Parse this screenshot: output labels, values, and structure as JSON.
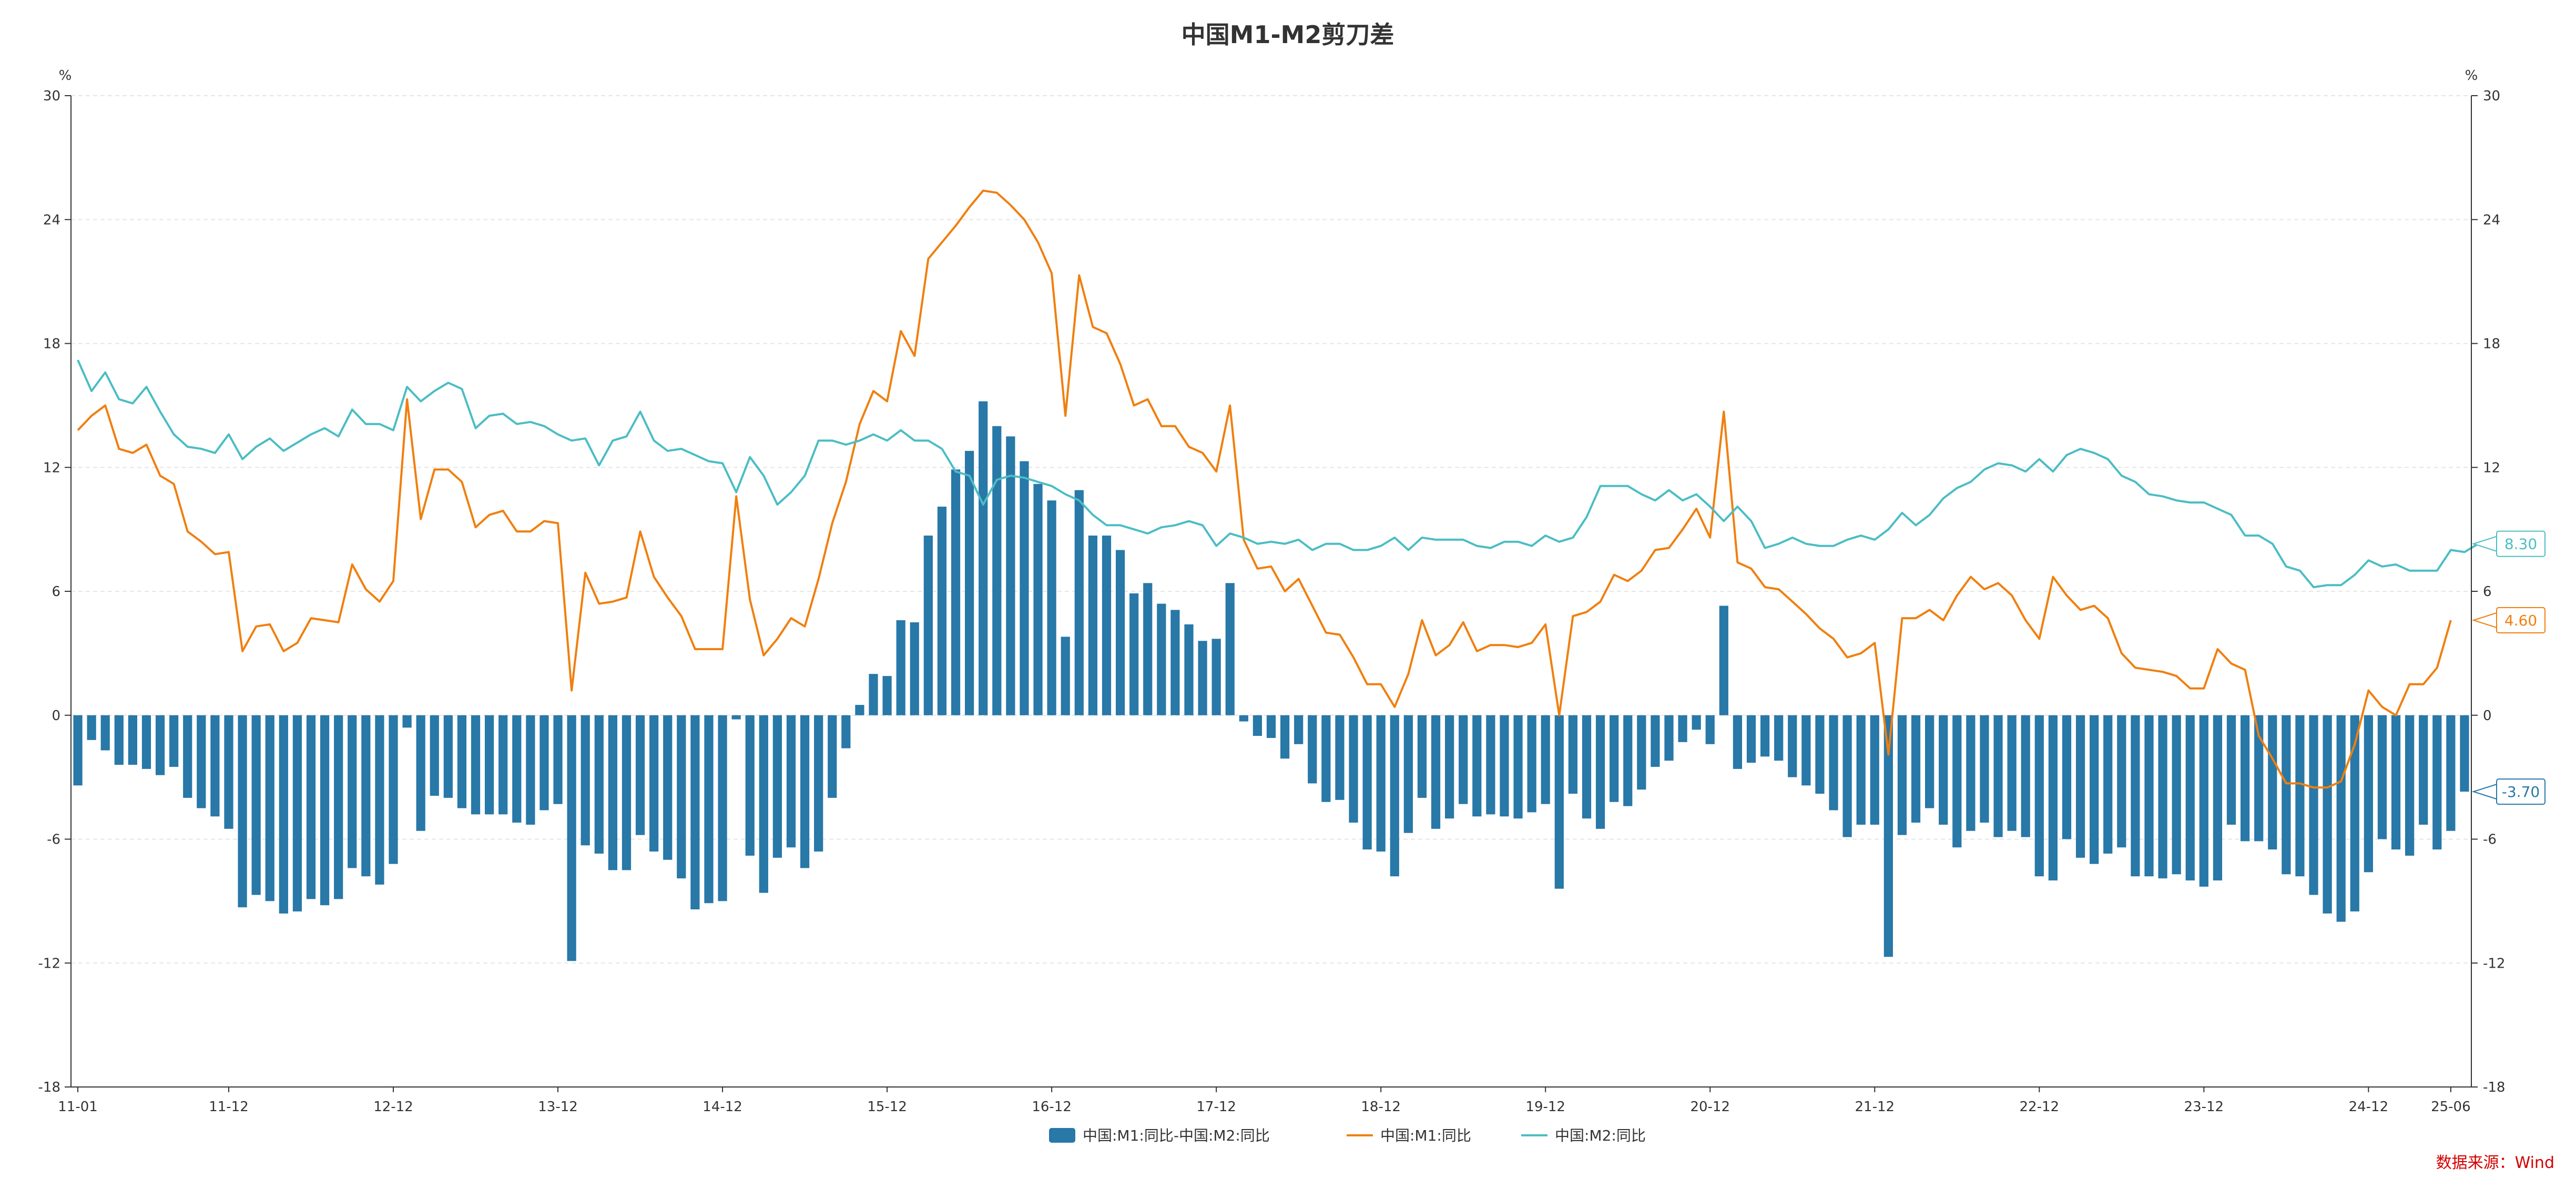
{
  "chart_data": {
    "type": "bar+line",
    "title": "中国M1-M2剪刀差",
    "y_unit_left": "%",
    "y_unit_right": "%",
    "ylim": [
      -18,
      30
    ],
    "yticks": [
      30,
      24,
      18,
      12,
      6,
      0,
      -6,
      -12,
      -18
    ],
    "grid": true,
    "legend_position": "bottom-center",
    "source": "数据来源：Wind",
    "x_tick_labels": [
      {
        "label": "11-01",
        "index": 0
      },
      {
        "label": "11-12",
        "index": 11
      },
      {
        "label": "12-12",
        "index": 23
      },
      {
        "label": "13-12",
        "index": 35
      },
      {
        "label": "14-12",
        "index": 47
      },
      {
        "label": "15-12",
        "index": 59
      },
      {
        "label": "16-12",
        "index": 71
      },
      {
        "label": "17-12",
        "index": 83
      },
      {
        "label": "18-12",
        "index": 95
      },
      {
        "label": "19-12",
        "index": 107
      },
      {
        "label": "20-12",
        "index": 119
      },
      {
        "label": "21-12",
        "index": 131
      },
      {
        "label": "22-12",
        "index": 143
      },
      {
        "label": "23-12",
        "index": 155
      },
      {
        "label": "24-12",
        "index": 167
      },
      {
        "label": "25-06",
        "index": 173
      }
    ],
    "series": [
      {
        "name": "中国:M1:同比-中国:M2:同比",
        "type": "bar",
        "color": "#2878a8",
        "end_label": "-3.70",
        "values": [
          -3.4,
          -1.2,
          -1.7,
          -2.4,
          -2.4,
          -2.6,
          -2.9,
          -2.5,
          -4.0,
          -4.5,
          -4.9,
          -5.5,
          -9.3,
          -8.7,
          -9.0,
          -9.6,
          -9.5,
          -8.9,
          -9.2,
          -8.9,
          -7.4,
          -7.8,
          -8.2,
          -7.2,
          -0.6,
          -5.6,
          -3.9,
          -4.0,
          -4.5,
          -4.8,
          -4.8,
          -4.8,
          -5.2,
          -5.3,
          -4.6,
          -4.3,
          -11.9,
          -6.3,
          -6.7,
          -7.5,
          -7.5,
          -5.8,
          -6.6,
          -7.0,
          -7.9,
          -9.4,
          -9.1,
          -9.0,
          -0.2,
          -6.8,
          -8.6,
          -6.9,
          -6.4,
          -7.4,
          -6.6,
          -4.0,
          -1.6,
          0.5,
          2.0,
          1.9,
          4.6,
          4.5,
          8.7,
          10.1,
          11.9,
          12.8,
          15.2,
          14.0,
          13.5,
          12.3,
          11.2,
          10.4,
          3.8,
          10.9,
          8.7,
          8.7,
          8.0,
          5.9,
          6.4,
          5.4,
          5.1,
          4.4,
          3.6,
          3.7,
          6.4,
          -0.3,
          -1.0,
          -1.1,
          -2.1,
          -1.4,
          -3.3,
          -4.2,
          -4.1,
          -5.2,
          -6.5,
          -6.6,
          -7.8,
          -5.7,
          -4.0,
          -5.5,
          -5.0,
          -4.3,
          -4.9,
          -4.8,
          -4.9,
          -5.0,
          -4.7,
          -4.3,
          -8.4,
          -3.8,
          -5.0,
          -5.5,
          -4.2,
          -4.4,
          -3.6,
          -2.5,
          -2.2,
          -1.3,
          -0.7,
          -1.4,
          5.3,
          -2.6,
          -2.3,
          -2.0,
          -2.2,
          -3.0,
          -3.4,
          -3.8,
          -4.6,
          -5.9,
          -5.3,
          -5.3,
          -11.7,
          -5.8,
          -5.2,
          -4.5,
          -5.3,
          -6.4,
          -5.6,
          -5.2,
          -5.9,
          -5.6,
          -5.9,
          -7.8,
          -8.0,
          -6.0,
          -6.9,
          -7.2,
          -6.7,
          -6.4,
          -7.8,
          -7.8,
          -7.9,
          -7.7,
          -8.0,
          -8.3,
          -8.0,
          -5.3,
          -6.1,
          -6.1,
          -6.5,
          -7.7,
          -7.8,
          -8.7,
          -9.6,
          -10.0,
          -9.5,
          -7.6,
          -6.0,
          -6.5,
          -6.8,
          -5.3,
          -6.5,
          -5.6,
          -3.7
        ]
      },
      {
        "name": "中国:M1:同比",
        "type": "line",
        "color": "#f07f0e",
        "end_label": "4.60",
        "values": [
          13.8,
          14.5,
          15.0,
          12.9,
          12.7,
          13.1,
          11.6,
          11.2,
          8.9,
          8.4,
          7.8,
          7.9,
          3.1,
          4.3,
          4.4,
          3.1,
          3.5,
          4.7,
          4.6,
          4.5,
          7.3,
          6.1,
          5.5,
          6.5,
          15.3,
          9.5,
          11.9,
          11.9,
          11.3,
          9.1,
          9.7,
          9.9,
          8.9,
          8.9,
          9.4,
          9.3,
          1.2,
          6.9,
          5.4,
          5.5,
          5.7,
          8.9,
          6.7,
          5.7,
          4.8,
          3.2,
          3.2,
          3.2,
          10.6,
          5.6,
          2.9,
          3.7,
          4.7,
          4.3,
          6.6,
          9.3,
          11.3,
          14.1,
          15.7,
          15.2,
          18.6,
          17.4,
          22.1,
          22.9,
          23.7,
          24.6,
          25.4,
          25.3,
          24.7,
          24.0,
          22.9,
          21.4,
          14.5,
          21.3,
          18.8,
          18.5,
          17.0,
          15.0,
          15.3,
          14.0,
          14.0,
          13.0,
          12.7,
          11.8,
          15.0,
          8.5,
          7.1,
          7.2,
          6.0,
          6.6,
          5.3,
          4.0,
          3.9,
          2.8,
          1.5,
          1.5,
          0.4,
          2.0,
          4.6,
          2.9,
          3.4,
          4.5,
          3.1,
          3.4,
          3.4,
          3.3,
          3.5,
          4.4,
          0.0,
          4.8,
          5.0,
          5.5,
          6.8,
          6.5,
          7.0,
          8.0,
          8.1,
          9.0,
          10.0,
          8.6,
          14.7,
          7.4,
          7.1,
          6.2,
          6.1,
          5.5,
          4.9,
          4.2,
          3.7,
          2.8,
          3.0,
          3.5,
          -1.9,
          4.7,
          4.7,
          5.1,
          4.6,
          5.8,
          6.7,
          6.1,
          6.4,
          5.8,
          4.6,
          3.7,
          6.7,
          5.8,
          5.1,
          5.3,
          4.7,
          3.0,
          2.3,
          2.2,
          2.1,
          1.9,
          1.3,
          1.3,
          3.2,
          2.5,
          2.2,
          -1.0,
          -2.1,
          -3.3,
          -3.3,
          -3.5,
          -3.5,
          -3.2,
          -1.4,
          1.2,
          0.4,
          0.0,
          1.5,
          1.5,
          2.3,
          4.6
        ]
      },
      {
        "name": "中国:M2:同比",
        "type": "line",
        "color": "#4bbdc4",
        "end_label": "8.30",
        "values": [
          17.2,
          15.7,
          16.6,
          15.3,
          15.1,
          15.9,
          14.7,
          13.6,
          13.0,
          12.9,
          12.7,
          13.6,
          12.4,
          13.0,
          13.4,
          12.8,
          13.2,
          13.6,
          13.9,
          13.5,
          14.8,
          14.1,
          14.1,
          13.8,
          15.9,
          15.2,
          15.7,
          16.1,
          15.8,
          13.9,
          14.5,
          14.6,
          14.1,
          14.2,
          14.0,
          13.6,
          13.3,
          13.4,
          12.1,
          13.3,
          13.5,
          14.7,
          13.3,
          12.8,
          12.9,
          12.6,
          12.3,
          12.2,
          10.8,
          12.5,
          11.6,
          10.2,
          10.8,
          11.6,
          13.3,
          13.3,
          13.1,
          13.3,
          13.6,
          13.3,
          13.8,
          13.3,
          13.3,
          12.9,
          11.8,
          11.6,
          10.2,
          11.4,
          11.6,
          11.5,
          11.3,
          11.1,
          10.7,
          10.4,
          9.7,
          9.2,
          9.2,
          9.0,
          8.8,
          9.1,
          9.2,
          9.4,
          9.2,
          8.2,
          8.8,
          8.6,
          8.3,
          8.4,
          8.3,
          8.5,
          8.0,
          8.3,
          8.3,
          8.0,
          8.0,
          8.2,
          8.6,
          8.0,
          8.6,
          8.5,
          8.5,
          8.5,
          8.2,
          8.1,
          8.4,
          8.4,
          8.2,
          8.7,
          8.4,
          8.6,
          9.6,
          11.1,
          11.1,
          11.1,
          10.7,
          10.4,
          10.9,
          10.4,
          10.7,
          10.1,
          9.4,
          10.1,
          9.4,
          8.1,
          8.3,
          8.6,
          8.3,
          8.2,
          8.2,
          8.5,
          8.7,
          8.5,
          9.0,
          9.8,
          9.2,
          9.7,
          10.5,
          11.0,
          11.3,
          11.9,
          12.2,
          12.1,
          11.8,
          12.4,
          11.8,
          12.6,
          12.9,
          12.7,
          12.4,
          11.6,
          11.3,
          10.7,
          10.6,
          10.4,
          10.3,
          10.3,
          10.0,
          9.7,
          8.7,
          8.7,
          8.3,
          7.2,
          7.0,
          6.2,
          6.3,
          6.3,
          6.8,
          7.5,
          7.2,
          7.3,
          7.0,
          7.0,
          7.0,
          8.0,
          7.9,
          8.3
        ]
      }
    ]
  }
}
